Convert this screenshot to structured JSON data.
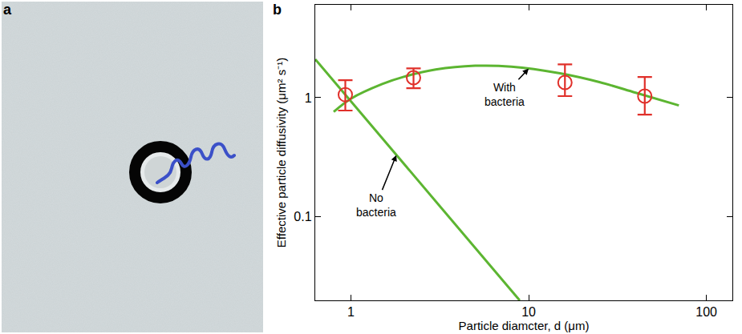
{
  "image_panel": {
    "label": "a"
  },
  "chart_data": {
    "type": "scatter",
    "panel_label": "b",
    "x_label": "Particle diamcter, d (μm)",
    "y_label": "Effective particle diffusivity (μm² s⁻¹)",
    "log": true,
    "grid": false,
    "xlim": [
      0.63,
      140
    ],
    "ylim": [
      0.02,
      6
    ],
    "xticks": [
      1,
      10,
      100
    ],
    "yticks": [
      0.1,
      1
    ],
    "series": [
      {
        "type": "line",
        "color": "#5cb531",
        "line_style": "solid",
        "x": [
          0.63,
          8.9
        ],
        "values": [
          2.1,
          0.02
        ]
      },
      {
        "type": "line",
        "color": "#5cb531",
        "line_style": "solid",
        "x": [
          0.8,
          1,
          1.5,
          2,
          3,
          5,
          8,
          15,
          25,
          40,
          70
        ],
        "values": [
          0.76,
          0.98,
          1.3,
          1.5,
          1.72,
          1.85,
          1.82,
          1.6,
          1.35,
          1.1,
          0.86
        ]
      },
      {
        "type": "scatter",
        "color": "#e0302a",
        "marker": "open_circle",
        "x": [
          0.93,
          2.25,
          16,
          45
        ],
        "values": [
          1.06,
          1.47,
          1.34,
          1.03
        ],
        "error_plus": [
          0.34,
          0.29,
          0.56,
          0.46
        ],
        "error_minus": [
          0.28,
          0.27,
          0.31,
          0.31
        ]
      }
    ],
    "annotations": [
      {
        "text": "With bacteria",
        "x": 10,
        "y": 1.75
      },
      {
        "text": "No bacteria",
        "x": 1.8,
        "y": 0.33
      }
    ]
  }
}
